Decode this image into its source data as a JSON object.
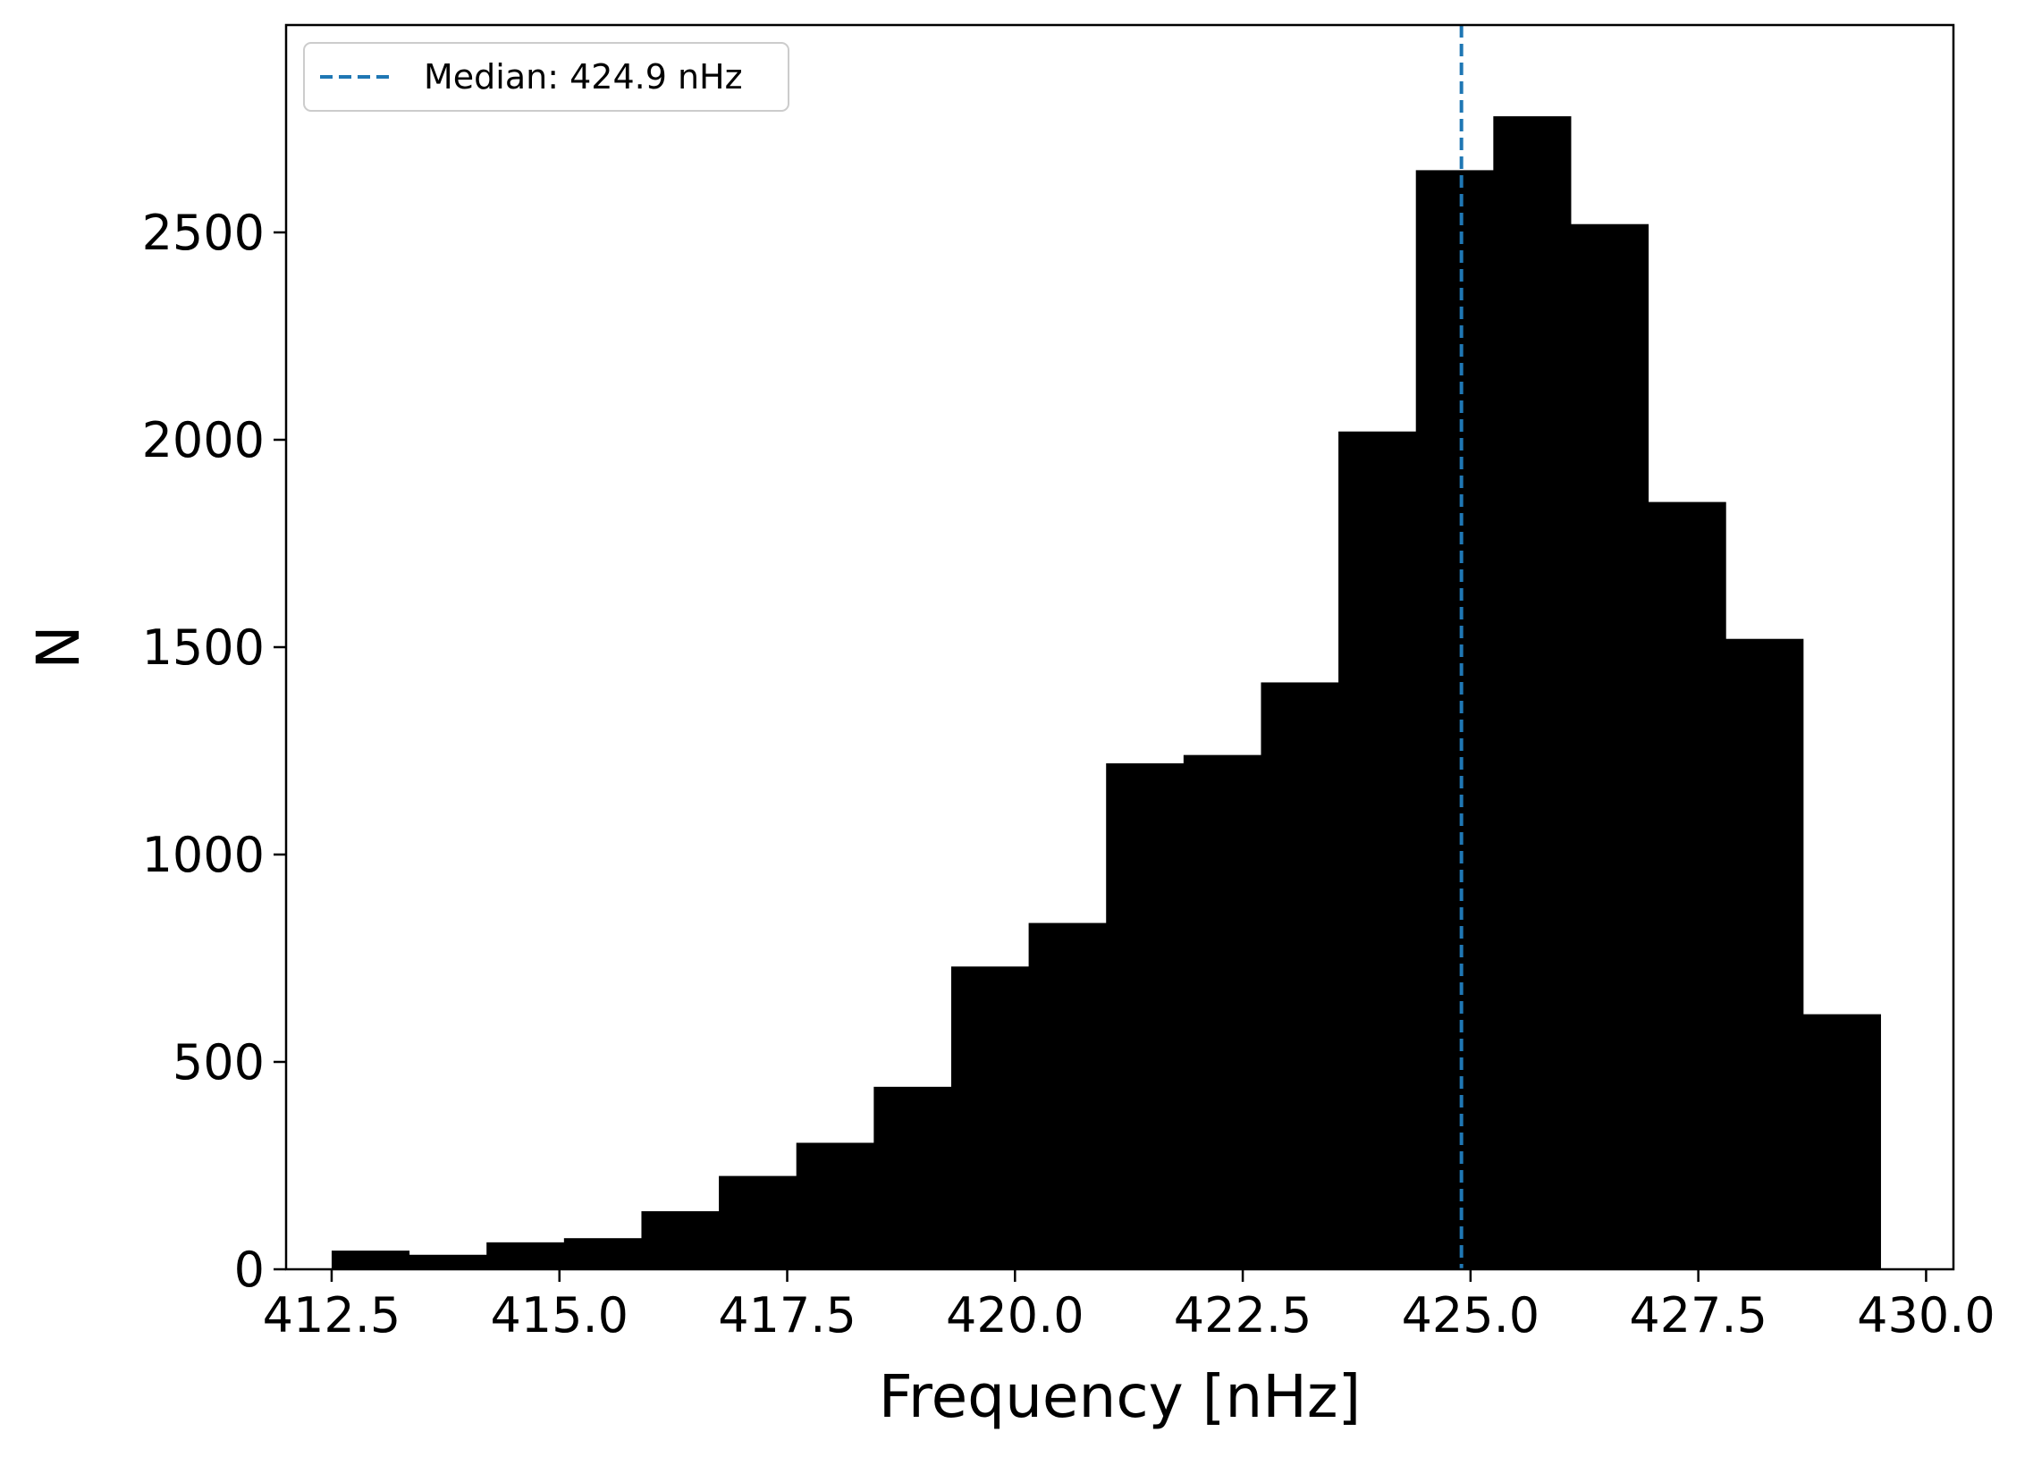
{
  "chart_data": {
    "type": "bar",
    "title": "",
    "xlabel": "Frequency [nHz]",
    "ylabel": "N",
    "xlim": [
      412.0,
      430.3
    ],
    "ylim": [
      0,
      3000
    ],
    "xticks": [
      412.5,
      415.0,
      417.5,
      420.0,
      422.5,
      425.0,
      427.5,
      430.0
    ],
    "xtick_labels": [
      "412.5",
      "415.0",
      "417.5",
      "420.0",
      "422.5",
      "425.0",
      "427.5",
      "430.0"
    ],
    "yticks": [
      0,
      500,
      1000,
      1500,
      2000,
      2500
    ],
    "ytick_labels": [
      "0",
      "500",
      "1000",
      "1500",
      "2000",
      "2500"
    ],
    "bin_edges": [
      412.5,
      413.35,
      414.2,
      415.05,
      415.9,
      416.75,
      417.6,
      418.45,
      419.3,
      420.15,
      421.0,
      421.85,
      422.7,
      423.55,
      424.4,
      425.25,
      426.1,
      426.95,
      427.8,
      428.65,
      429.5
    ],
    "values": [
      45,
      35,
      65,
      75,
      140,
      225,
      305,
      440,
      730,
      835,
      1220,
      1240,
      1415,
      2020,
      2650,
      2780,
      2520,
      1850,
      1520,
      615
    ],
    "bar_color": "#000000",
    "median": {
      "value": 424.9,
      "label": "Median: 424.9 nHz",
      "color": "#1f77b4",
      "style": "dashed"
    },
    "legend": {
      "placement": "top-left"
    },
    "grid": false
  }
}
